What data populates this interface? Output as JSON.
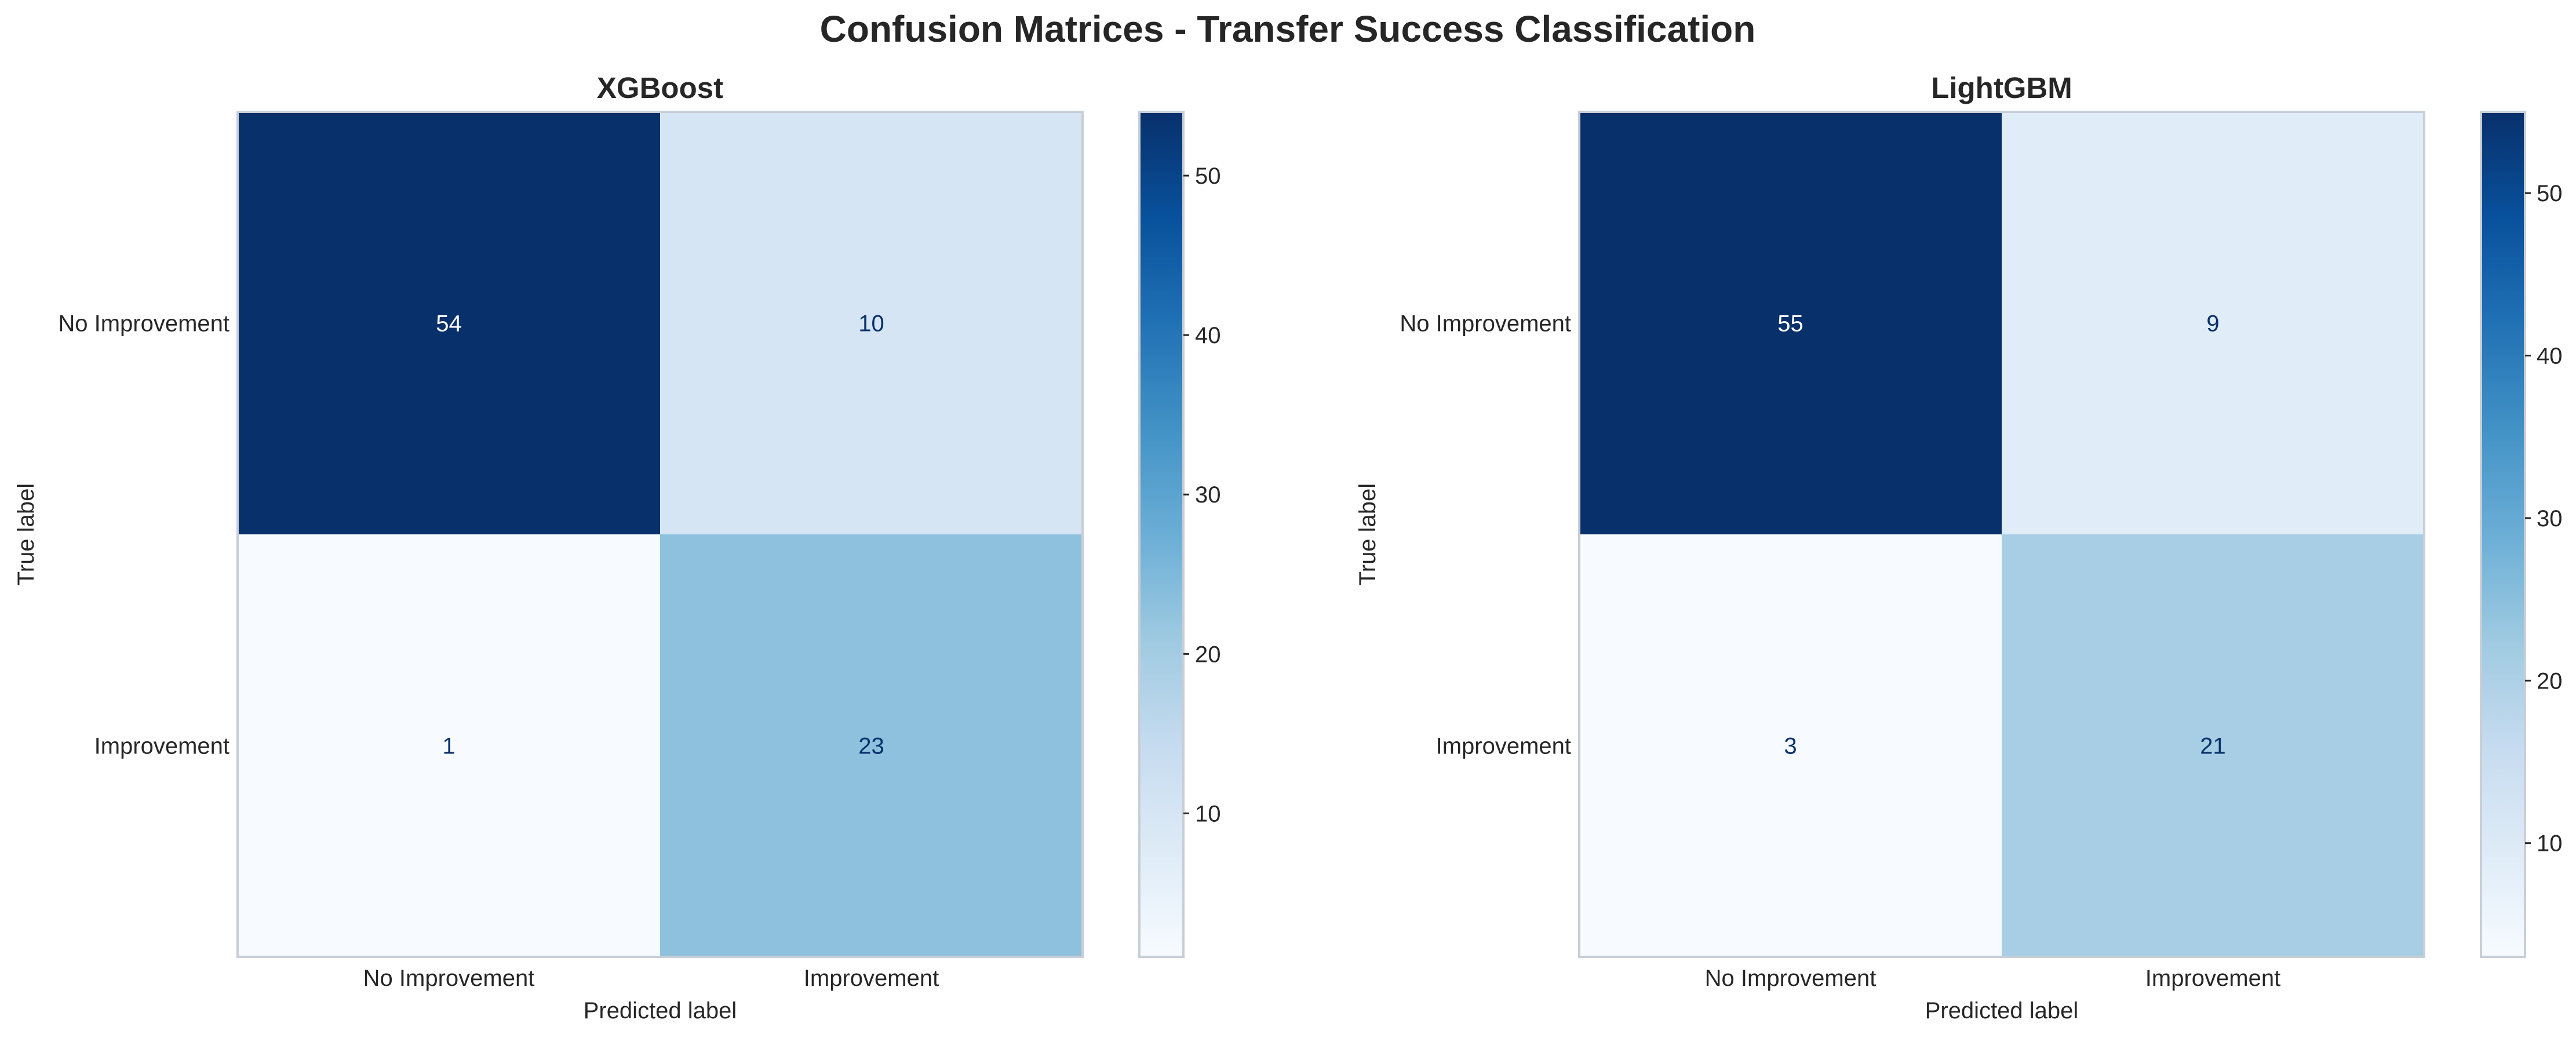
{
  "figure": {
    "title": "Confusion Matrices - Transfer Success Classification"
  },
  "chart_data": [
    {
      "type": "heatmap",
      "title": "XGBoost",
      "xlabel": "Predicted label",
      "ylabel": "True label",
      "x_categories": [
        "No Improvement",
        "Improvement"
      ],
      "y_categories": [
        "No Improvement",
        "Improvement"
      ],
      "values": [
        [
          54,
          10
        ],
        [
          1,
          23
        ]
      ],
      "colormap": "Blues",
      "colorbar": {
        "range": [
          1,
          54
        ],
        "ticks": [
          10,
          20,
          30,
          40,
          50
        ]
      },
      "grid": false
    },
    {
      "type": "heatmap",
      "title": "LightGBM",
      "xlabel": "Predicted label",
      "ylabel": "True label",
      "x_categories": [
        "No Improvement",
        "Improvement"
      ],
      "y_categories": [
        "No Improvement",
        "Improvement"
      ],
      "values": [
        [
          55,
          9
        ],
        [
          3,
          21
        ]
      ],
      "colormap": "Blues",
      "colorbar": {
        "range": [
          3,
          55
        ],
        "ticks": [
          10,
          20,
          30,
          40,
          50
        ]
      },
      "grid": false
    }
  ]
}
